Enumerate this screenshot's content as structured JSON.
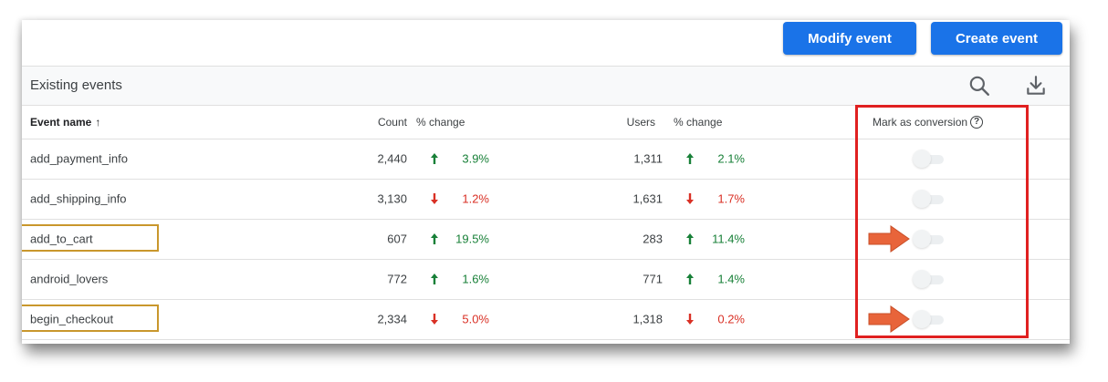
{
  "toolbar": {
    "modify_label": "Modify event",
    "create_label": "Create event"
  },
  "section": {
    "title": "Existing events",
    "search_icon": "search-icon",
    "download_icon": "download-icon"
  },
  "table": {
    "headers": {
      "event_name": "Event name",
      "sort_indicator": "↑",
      "count": "Count",
      "count_change": "% change",
      "users": "Users",
      "users_change": "% change",
      "conversion": "Mark as conversion",
      "help": "?"
    },
    "rows": [
      {
        "name": "add_payment_info",
        "count": "2,440",
        "count_dir": "up",
        "count_pct": "3.9%",
        "users": "1,311",
        "users_dir": "up",
        "users_pct": "2.1%",
        "conversion": false,
        "highlighted": false
      },
      {
        "name": "add_shipping_info",
        "count": "3,130",
        "count_dir": "down",
        "count_pct": "1.2%",
        "users": "1,631",
        "users_dir": "down",
        "users_pct": "1.7%",
        "conversion": false,
        "highlighted": false
      },
      {
        "name": "add_to_cart",
        "count": "607",
        "count_dir": "up",
        "count_pct": "19.5%",
        "users": "283",
        "users_dir": "up",
        "users_pct": "11.4%",
        "conversion": false,
        "highlighted": true
      },
      {
        "name": "android_lovers",
        "count": "772",
        "count_dir": "up",
        "count_pct": "1.6%",
        "users": "771",
        "users_dir": "up",
        "users_pct": "1.4%",
        "conversion": false,
        "highlighted": false
      },
      {
        "name": "begin_checkout",
        "count": "2,334",
        "count_dir": "down",
        "count_pct": "5.0%",
        "users": "1,318",
        "users_dir": "down",
        "users_pct": "0.2%",
        "conversion": false,
        "highlighted": true
      }
    ]
  },
  "colors": {
    "primary_button": "#1a73e8",
    "increase": "#188038",
    "decrease": "#d93025",
    "annotation_red": "#e02020",
    "annotation_gold": "#c9972c",
    "annotation_arrow": "#e8643a"
  }
}
